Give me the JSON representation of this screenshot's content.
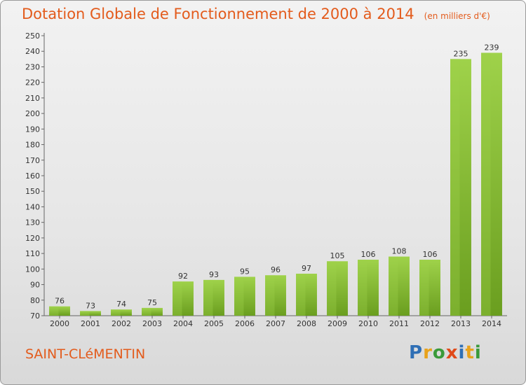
{
  "title": "Dotation Globale de Fonctionnement de 2000 à 2014",
  "unit_note": "(en milliers d'€)",
  "commune": "SAINT-CLéMENTIN",
  "logo": {
    "text": "Proxiti",
    "colors": [
      "#2f6fb5",
      "#e8a21b",
      "#3a9a3a",
      "#e04a1a",
      "#2f6fb5",
      "#e8a21b",
      "#3a9a3a"
    ]
  },
  "colors": {
    "title": "#e35b1c",
    "bar_light": "#9fd24a",
    "bar_dark": "#6a9e1f",
    "axis": "#666666"
  },
  "chart_data": {
    "type": "bar",
    "categories": [
      "2000",
      "2001",
      "2002",
      "2003",
      "2004",
      "2005",
      "2006",
      "2007",
      "2008",
      "2009",
      "2010",
      "2011",
      "2012",
      "2013",
      "2014"
    ],
    "values": [
      76,
      73,
      74,
      75,
      92,
      93,
      95,
      96,
      97,
      105,
      106,
      108,
      106,
      235,
      239
    ],
    "ylim": [
      70,
      250
    ],
    "yticks": [
      70,
      80,
      90,
      100,
      110,
      120,
      130,
      140,
      150,
      160,
      170,
      180,
      190,
      200,
      210,
      220,
      230,
      240,
      250
    ],
    "grid": false,
    "data_labels": true
  }
}
